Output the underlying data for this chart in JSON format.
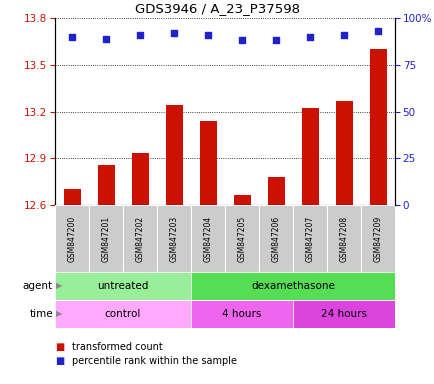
{
  "title": "GDS3946 / A_23_P37598",
  "samples": [
    "GSM847200",
    "GSM847201",
    "GSM847202",
    "GSM847203",
    "GSM847204",
    "GSM847205",
    "GSM847206",
    "GSM847207",
    "GSM847208",
    "GSM847209"
  ],
  "transformed_counts": [
    12.7,
    12.855,
    12.935,
    13.24,
    13.14,
    12.665,
    12.78,
    13.22,
    13.27,
    13.6
  ],
  "percentile_ranks": [
    90,
    89,
    91,
    92,
    91,
    88,
    88,
    90,
    91,
    93
  ],
  "ylim_left": [
    12.6,
    13.8
  ],
  "ylim_right": [
    0,
    100
  ],
  "yticks_left": [
    12.6,
    12.9,
    13.2,
    13.5,
    13.8
  ],
  "yticks_right": [
    0,
    25,
    50,
    75,
    100
  ],
  "bar_color": "#cc1100",
  "dot_color": "#2222cc",
  "agent_groups": [
    {
      "label": "untreated",
      "start": 0,
      "end": 4,
      "color": "#99ee99"
    },
    {
      "label": "dexamethasone",
      "start": 4,
      "end": 10,
      "color": "#55dd55"
    }
  ],
  "time_groups": [
    {
      "label": "control",
      "start": 0,
      "end": 4,
      "color": "#ffaaff"
    },
    {
      "label": "4 hours",
      "start": 4,
      "end": 7,
      "color": "#ee66ee"
    },
    {
      "label": "24 hours",
      "start": 7,
      "end": 10,
      "color": "#dd44dd"
    }
  ],
  "bar_width": 0.5,
  "axis_color_left": "#cc1100",
  "axis_color_right": "#2222cc"
}
